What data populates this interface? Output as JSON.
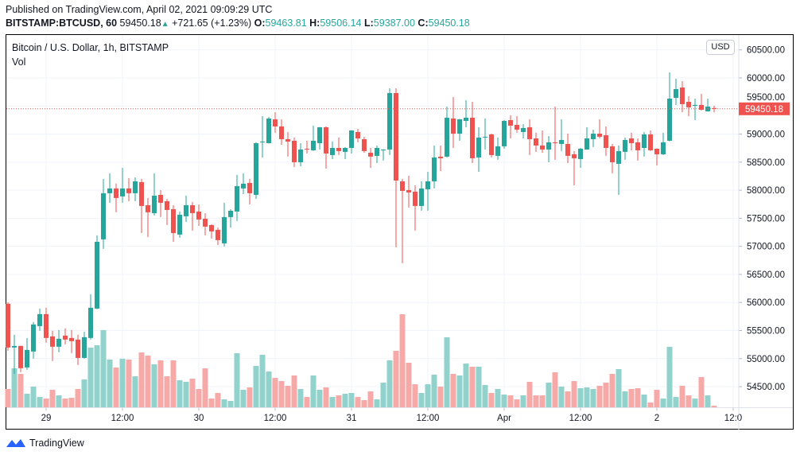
{
  "header": {
    "published": "Published on TradingView.com, April 02, 2021 09:09:29 UTC",
    "symbol": "BITSTAMP:BTCUSD, 60",
    "last": "59450.18",
    "change": "+721.65 (+1.23%)",
    "o_label": "O:",
    "o_value": "59463.81",
    "h_label": "H:",
    "h_value": "59506.14",
    "l_label": "L:",
    "l_value": "59387.00",
    "c_label": "C:",
    "c_value": "59450.18"
  },
  "legend": {
    "title": "Bitcoin / U.S. Dollar, 1h, BITSTAMP",
    "vol": "Vol"
  },
  "currency_button": "USD",
  "footer": {
    "brand": "TradingView"
  },
  "colors": {
    "up": "#26a69a",
    "down": "#ef5350",
    "up_vol": "#92d2cc",
    "down_vol": "#f7a9a7",
    "grid": "#f0f3fa"
  },
  "chart_data": {
    "type": "candlestick",
    "title": "Bitcoin / U.S. Dollar, 1h, BITSTAMP",
    "interval": "1h",
    "start": "2021-03-28 18:00",
    "ylim": [
      54300,
      60700
    ],
    "y_ticks": [
      "54500.00",
      "55000.00",
      "55500.00",
      "56000.00",
      "56500.00",
      "57000.00",
      "57500.00",
      "58000.00",
      "58500.00",
      "59000.00",
      "59500.00",
      "60000.00",
      "60500.00"
    ],
    "last_price_label": "59450.18",
    "x_labels": [
      {
        "bar": 6,
        "text": "29"
      },
      {
        "bar": 18,
        "text": "12:00"
      },
      {
        "bar": 30,
        "text": "30"
      },
      {
        "bar": 42,
        "text": "12:00"
      },
      {
        "bar": 54,
        "text": "31"
      },
      {
        "bar": 66,
        "text": "12:00"
      },
      {
        "bar": 78,
        "text": "Apr"
      },
      {
        "bar": 90,
        "text": "12:00"
      },
      {
        "bar": 102,
        "text": "2"
      },
      {
        "bar": 114,
        "text": "12:0"
      }
    ],
    "ohlc": [
      [
        55976,
        56004,
        55140,
        55197
      ],
      [
        55197,
        55423,
        54729,
        55225
      ],
      [
        55225,
        55230,
        54757,
        54828
      ],
      [
        54842,
        55367,
        54800,
        55154
      ],
      [
        55126,
        55650,
        54998,
        55608
      ],
      [
        55579,
        55891,
        55494,
        55792
      ],
      [
        55792,
        55905,
        55282,
        55367
      ],
      [
        55395,
        55494,
        54956,
        55211
      ],
      [
        55211,
        55508,
        55112,
        55353
      ],
      [
        55409,
        55537,
        55253,
        55338
      ],
      [
        55367,
        55508,
        55098,
        55310
      ],
      [
        55338,
        55423,
        54885,
        55012
      ],
      [
        55012,
        55480,
        54998,
        55381
      ],
      [
        55367,
        56146,
        55338,
        55905
      ],
      [
        55891,
        57195,
        55880,
        57081
      ],
      [
        57124,
        58201,
        56954,
        57946
      ],
      [
        57946,
        58300,
        57776,
        58031
      ],
      [
        58031,
        58116,
        57606,
        57861
      ],
      [
        57889,
        58399,
        57776,
        58031
      ],
      [
        58031,
        58215,
        57804,
        57946
      ],
      [
        57946,
        58229,
        57804,
        58158
      ],
      [
        58144,
        58201,
        57237,
        57719
      ],
      [
        57733,
        57861,
        57166,
        57606
      ],
      [
        57591,
        58300,
        57549,
        57903
      ],
      [
        57917,
        58002,
        57521,
        57776
      ],
      [
        57804,
        57846,
        57379,
        57648
      ],
      [
        57662,
        57733,
        57081,
        57237
      ],
      [
        57209,
        57620,
        57152,
        57563
      ],
      [
        57535,
        57903,
        57436,
        57733
      ],
      [
        57733,
        57790,
        57280,
        57591
      ],
      [
        57620,
        57747,
        57365,
        57478
      ],
      [
        57492,
        57591,
        57195,
        57351
      ],
      [
        57379,
        57393,
        57138,
        57266
      ],
      [
        57294,
        57336,
        57025,
        57110
      ],
      [
        57053,
        57776,
        56996,
        57521
      ],
      [
        57521,
        57662,
        57336,
        57634
      ],
      [
        57620,
        58272,
        57450,
        58073
      ],
      [
        58031,
        58300,
        57932,
        58116
      ],
      [
        58130,
        58201,
        57747,
        57946
      ],
      [
        57917,
        58853,
        57846,
        58838
      ],
      [
        58853,
        59320,
        58583,
        58867
      ],
      [
        58838,
        59306,
        58830,
        59278
      ],
      [
        59263,
        59391,
        59023,
        59136
      ],
      [
        59136,
        59263,
        58810,
        58909
      ],
      [
        58909,
        59037,
        58598,
        58867
      ],
      [
        58881,
        58938,
        58413,
        58498
      ],
      [
        58498,
        58838,
        58427,
        58725
      ],
      [
        58739,
        58881,
        58654,
        58725
      ],
      [
        58711,
        59150,
        58697,
        58881
      ],
      [
        58838,
        59125,
        58725,
        59122
      ],
      [
        59122,
        59136,
        58385,
        58654
      ],
      [
        58626,
        58867,
        58555,
        58753
      ],
      [
        58753,
        58938,
        58626,
        58697
      ],
      [
        58683,
        58768,
        58555,
        58753
      ],
      [
        58753,
        59070,
        58654,
        59065
      ],
      [
        59037,
        59093,
        58853,
        58923
      ],
      [
        58909,
        58952,
        58668,
        58697
      ],
      [
        58668,
        58753,
        58399,
        58598
      ],
      [
        58612,
        58796,
        58484,
        58753
      ],
      [
        58711,
        58730,
        58527,
        58725
      ],
      [
        58725,
        59816,
        58626,
        59731
      ],
      [
        59731,
        59816,
        56982,
        58172
      ],
      [
        58158,
        58201,
        56699,
        57988
      ],
      [
        58002,
        58257,
        57691,
        57960
      ],
      [
        57974,
        58087,
        57280,
        57719
      ],
      [
        57719,
        58158,
        57634,
        58031
      ],
      [
        58017,
        58328,
        57634,
        58158
      ],
      [
        58158,
        58796,
        58031,
        58583
      ],
      [
        58598,
        58796,
        58342,
        58569
      ],
      [
        58598,
        59490,
        58583,
        59292
      ],
      [
        59278,
        59660,
        58753,
        59008
      ],
      [
        59008,
        59270,
        58881,
        59263
      ],
      [
        59235,
        59604,
        59122,
        59292
      ],
      [
        59292,
        59575,
        58484,
        58569
      ],
      [
        58583,
        59122,
        58328,
        58938
      ],
      [
        58938,
        59278,
        58725,
        58952
      ],
      [
        58994,
        59008,
        58583,
        58626
      ],
      [
        58612,
        58938,
        58541,
        58782
      ],
      [
        58782,
        59249,
        58739,
        59235
      ],
      [
        59249,
        59334,
        58923,
        59150
      ],
      [
        59164,
        59320,
        59023,
        59079
      ],
      [
        59037,
        59178,
        58923,
        59108
      ],
      [
        59122,
        59263,
        58626,
        58909
      ],
      [
        58923,
        59023,
        58683,
        58796
      ],
      [
        58796,
        59065,
        58668,
        58725
      ],
      [
        58725,
        58966,
        58498,
        58853
      ],
      [
        58853,
        59490,
        58541,
        58838
      ],
      [
        58824,
        59263,
        58697,
        58895
      ],
      [
        58824,
        59008,
        58484,
        58612
      ],
      [
        58640,
        58697,
        58087,
        58569
      ],
      [
        58555,
        58753,
        58399,
        58739
      ],
      [
        58725,
        59122,
        58720,
        58923
      ],
      [
        58909,
        59079,
        58768,
        59008
      ],
      [
        59008,
        59263,
        58923,
        58952
      ],
      [
        58980,
        59136,
        58612,
        58753
      ],
      [
        58782,
        58824,
        58300,
        58498
      ],
      [
        58470,
        58796,
        57917,
        58697
      ],
      [
        58683,
        58938,
        58541,
        58895
      ],
      [
        58923,
        59023,
        58711,
        58838
      ],
      [
        58853,
        58923,
        58527,
        58711
      ],
      [
        58753,
        59037,
        58598,
        58994
      ],
      [
        58994,
        59065,
        58697,
        58711
      ],
      [
        58739,
        58745,
        58441,
        58640
      ],
      [
        58640,
        59023,
        58626,
        58853
      ],
      [
        58881,
        60100,
        58870,
        59632
      ],
      [
        59646,
        59986,
        59519,
        59802
      ],
      [
        59830,
        59944,
        59391,
        59533
      ],
      [
        59575,
        59674,
        59320,
        59476
      ],
      [
        59504,
        59632,
        59249,
        59519
      ],
      [
        59519,
        59717,
        59420,
        59434
      ],
      [
        59405,
        59632,
        59400,
        59490
      ],
      [
        59463.81,
        59506.14,
        59387.0,
        59450.18
      ]
    ],
    "volume_relative": [
      69,
      147,
      126,
      51,
      78,
      39,
      33,
      66,
      45,
      33,
      36,
      69,
      105,
      225,
      234,
      291,
      180,
      150,
      183,
      180,
      117,
      207,
      195,
      162,
      177,
      117,
      177,
      102,
      96,
      108,
      69,
      147,
      33,
      54,
      30,
      24,
      204,
      66,
      75,
      156,
      198,
      135,
      111,
      99,
      81,
      120,
      69,
      39,
      120,
      66,
      75,
      39,
      45,
      51,
      54,
      39,
      27,
      60,
      30,
      93,
      177,
      213,
      351,
      168,
      87,
      54,
      87,
      123,
      78,
      264,
      126,
      120,
      165,
      153,
      153,
      84,
      54,
      69,
      48,
      45,
      30,
      45,
      96,
      45,
      45,
      93,
      132,
      78,
      60,
      99,
      72,
      75,
      69,
      81,
      93,
      126,
      144,
      60,
      69,
      72,
      48,
      18,
      66,
      33,
      228,
      39,
      81,
      45,
      33,
      114,
      45,
      6
    ]
  }
}
